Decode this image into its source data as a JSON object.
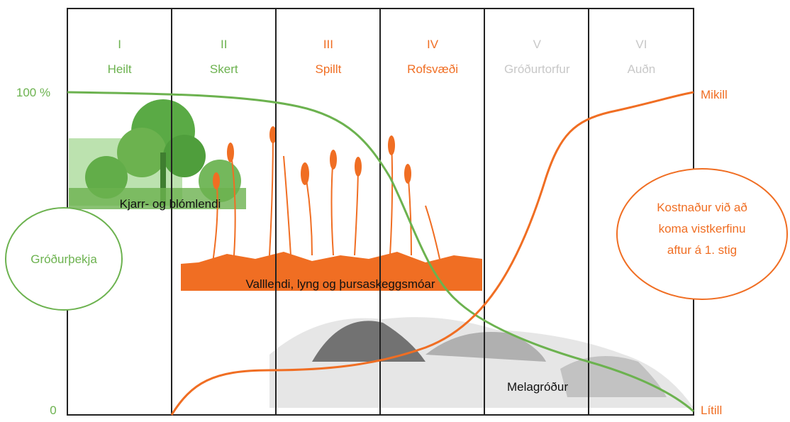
{
  "columns": [
    {
      "numeral": "I",
      "name": "Heilt"
    },
    {
      "numeral": "II",
      "name": "Skert"
    },
    {
      "numeral": "III",
      "name": "Spillt"
    },
    {
      "numeral": "IV",
      "name": "Rofsvæði"
    },
    {
      "numeral": "V",
      "name": "Gróðurtorfur"
    },
    {
      "numeral": "VI",
      "name": "Auðn"
    }
  ],
  "left_axis": {
    "top": "100 %",
    "bottom": "0",
    "label": "Gróðurþekja"
  },
  "right_axis": {
    "top": "Mikill",
    "bottom": "Lítill",
    "label": [
      "Kostnaður við að",
      "koma vistkerfinu",
      "aftur á 1. stig"
    ]
  },
  "vegetation": {
    "shrub": "Kjarr- og blómlendi",
    "grass": "Valllendi, lyng og þursaskeggsmóar",
    "gravel": "Melagróður"
  }
}
